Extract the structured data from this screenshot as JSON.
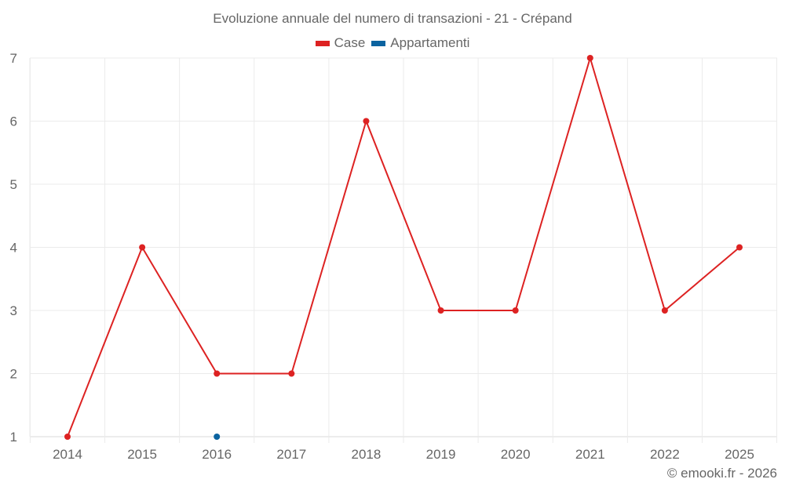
{
  "chart_data": {
    "type": "line",
    "title": "Evoluzione annuale del numero di transazioni - 21 - Crépand",
    "xlabel": "",
    "ylabel": "",
    "categories": [
      "2014",
      "2015",
      "2016",
      "2017",
      "2018",
      "2019",
      "2020",
      "2021",
      "2022",
      "2025"
    ],
    "series": [
      {
        "name": "Case",
        "color": "#dd2222",
        "values": [
          1,
          4,
          2,
          2,
          6,
          3,
          3,
          7,
          3,
          4
        ]
      },
      {
        "name": "Appartamenti",
        "color": "#0b63a0",
        "values": [
          null,
          null,
          1,
          null,
          null,
          null,
          null,
          null,
          null,
          null
        ]
      }
    ],
    "ylim": [
      1,
      7
    ],
    "yticks": [
      1,
      2,
      3,
      4,
      5,
      6,
      7
    ],
    "grid": true,
    "legend_position": "top"
  },
  "legend": {
    "items": [
      {
        "label": "Case",
        "color": "#dd2222"
      },
      {
        "label": "Appartamenti",
        "color": "#0b63a0"
      }
    ]
  },
  "credit": "© emooki.fr - 2026"
}
